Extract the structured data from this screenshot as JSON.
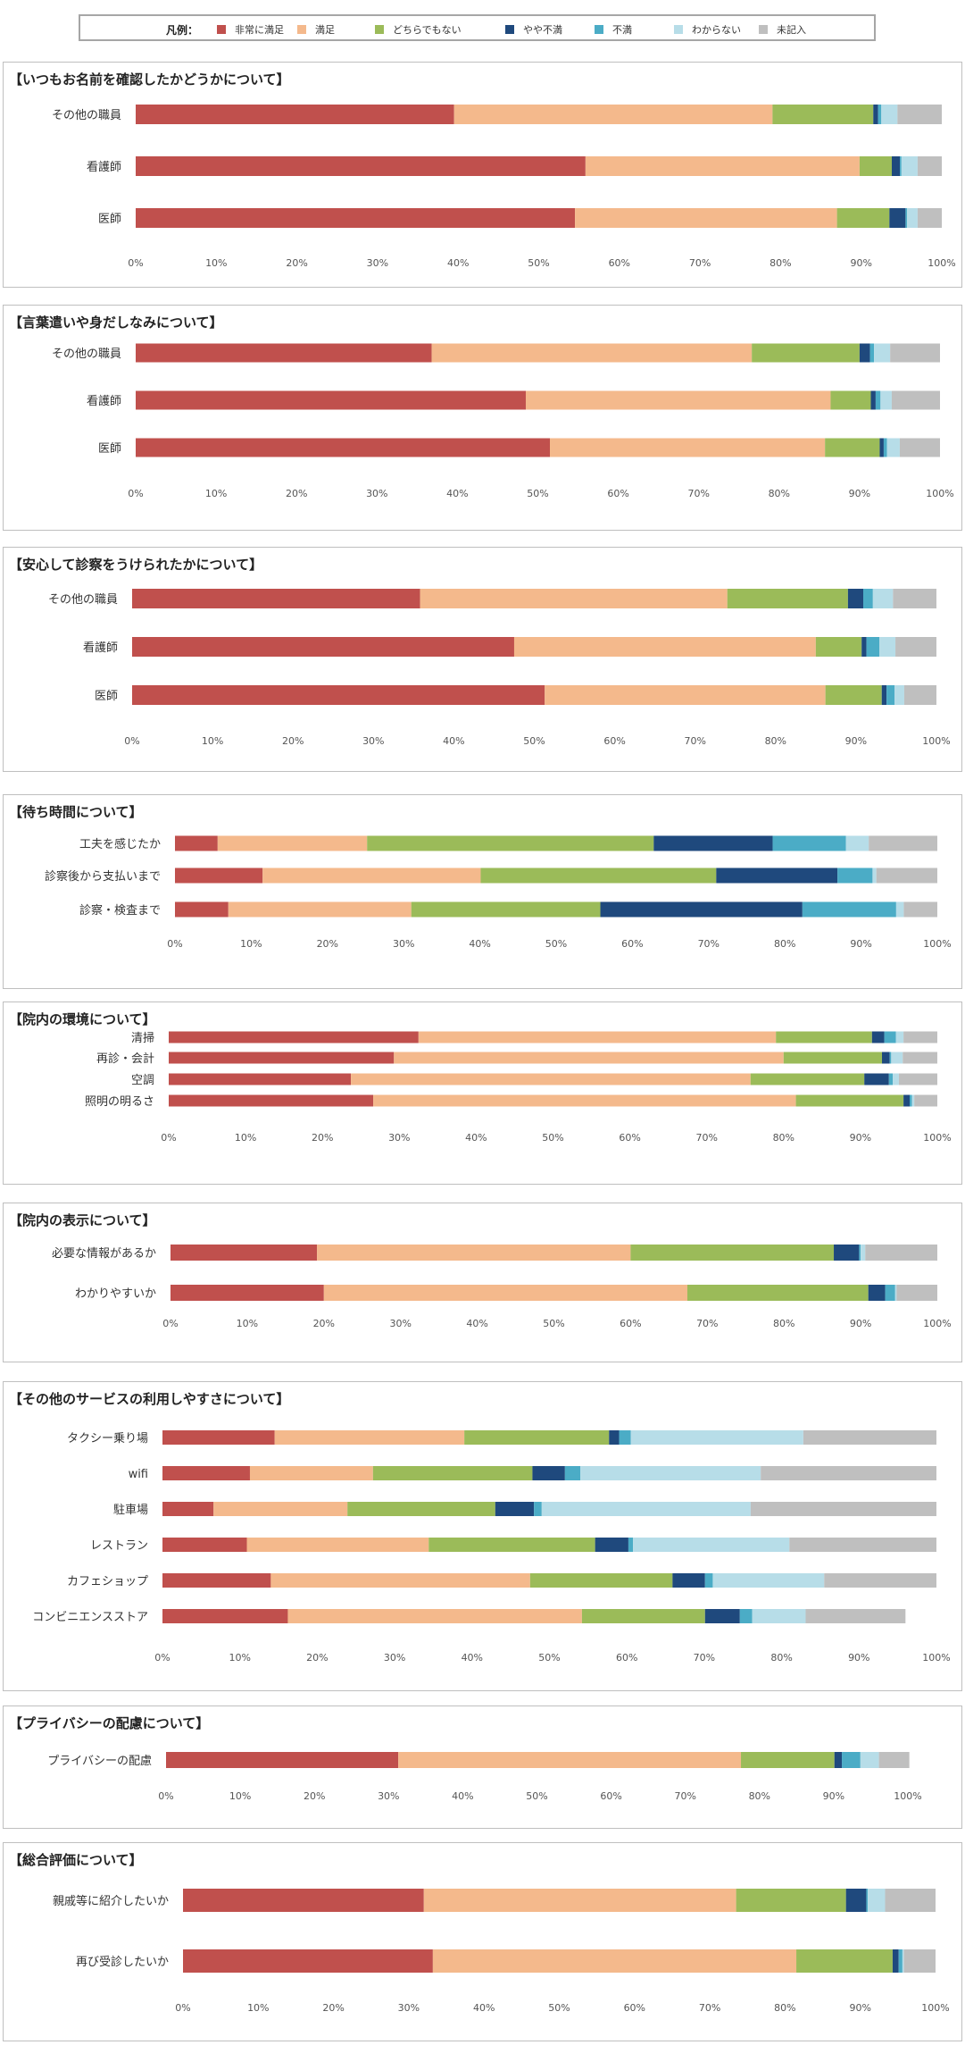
{
  "legend": {
    "title": "凡例：",
    "items": [
      {
        "label": "非常に満足",
        "color": "#c0504d"
      },
      {
        "label": "満足",
        "color": "#f4b98c"
      },
      {
        "label": "どちらでもない",
        "color": "#9bbb59"
      },
      {
        "label": "やや不満",
        "color": "#1f497d"
      },
      {
        "label": "不満",
        "color": "#4bacc6"
      },
      {
        "label": "わからない",
        "color": "#b7dde8"
      },
      {
        "label": "未記入",
        "color": "#bfbfbf"
      }
    ]
  },
  "chart_data": [
    {
      "type": "bar",
      "orientation": "horizontal",
      "stacked": true,
      "title": "【いつもお名前を確認したかどうかについて】",
      "xlim": [
        0,
        100
      ],
      "xticks": [
        "0%",
        "10%",
        "20%",
        "30%",
        "40%",
        "50%",
        "60%",
        "70%",
        "80%",
        "90%",
        "100%"
      ],
      "categories": [
        "その他の職員",
        "看護師",
        "医師"
      ],
      "series_values": [
        [
          39.5,
          39.5,
          12.5,
          0.6,
          0.4,
          2.0,
          5.5
        ],
        [
          55.8,
          34.0,
          4.0,
          1.0,
          0.2,
          2.0,
          3.0
        ],
        [
          54.5,
          32.5,
          6.5,
          2.0,
          0.2,
          1.3,
          3.0
        ]
      ]
    },
    {
      "type": "bar",
      "orientation": "horizontal",
      "stacked": true,
      "title": "【言葉遣いや身だしなみについて】",
      "xlim": [
        0,
        100
      ],
      "xticks": [
        "0%",
        "10%",
        "20%",
        "30%",
        "40%",
        "50%",
        "60%",
        "70%",
        "80%",
        "90%",
        "100%"
      ],
      "categories": [
        "その他の職員",
        "看護師",
        "医師"
      ],
      "series_values": [
        [
          36.8,
          39.8,
          13.4,
          1.3,
          0.5,
          2.0,
          6.2
        ],
        [
          48.5,
          37.9,
          5.0,
          0.6,
          0.6,
          1.4,
          6.0
        ],
        [
          51.5,
          34.2,
          6.8,
          0.5,
          0.4,
          1.6,
          5.0
        ]
      ]
    },
    {
      "type": "bar",
      "orientation": "horizontal",
      "stacked": true,
      "title": "【安心して診察をうけられたかについて】",
      "xlim": [
        0,
        100
      ],
      "xticks": [
        "0%",
        "10%",
        "20%",
        "30%",
        "40%",
        "50%",
        "60%",
        "70%",
        "80%",
        "90%",
        "100%"
      ],
      "categories": [
        "その他の職員",
        "看護師",
        "医師"
      ],
      "series_values": [
        [
          35.8,
          38.2,
          15.0,
          1.9,
          1.2,
          2.5,
          5.4
        ],
        [
          47.5,
          37.5,
          5.7,
          0.6,
          1.6,
          2.0,
          5.1
        ],
        [
          51.3,
          34.9,
          7.0,
          0.6,
          1.0,
          1.2,
          4.0
        ]
      ]
    },
    {
      "type": "bar",
      "orientation": "horizontal",
      "stacked": true,
      "title": "【待ち時間について】",
      "xlim": [
        0,
        100
      ],
      "xticks": [
        "0%",
        "10%",
        "20%",
        "30%",
        "40%",
        "50%",
        "60%",
        "70%",
        "80%",
        "90%",
        "100%"
      ],
      "categories": [
        "工夫を感じたか",
        "診察後から支払いまで",
        "診察・検査まで"
      ],
      "series_values": [
        [
          5.6,
          19.6,
          37.6,
          15.6,
          9.6,
          3.0,
          9.0
        ],
        [
          11.5,
          28.6,
          30.9,
          15.9,
          4.6,
          0.5,
          8.0
        ],
        [
          7.0,
          24.0,
          24.8,
          26.5,
          12.3,
          1.0,
          4.4
        ]
      ]
    },
    {
      "type": "bar",
      "orientation": "horizontal",
      "stacked": true,
      "title": "【院内の環境について】",
      "xlim": [
        0,
        100
      ],
      "xticks": [
        "0%",
        "10%",
        "20%",
        "30%",
        "40%",
        "50%",
        "60%",
        "70%",
        "80%",
        "90%",
        "100%"
      ],
      "categories": [
        "清掃",
        "再診・会計",
        "空調",
        "照明の明るさ"
      ],
      "series_values": [
        [
          32.5,
          46.5,
          12.5,
          1.6,
          1.5,
          1.0,
          4.4
        ],
        [
          29.3,
          50.7,
          12.8,
          1.0,
          0.2,
          1.5,
          4.5
        ],
        [
          23.7,
          52.0,
          14.8,
          3.2,
          0.5,
          0.8,
          5.0
        ],
        [
          26.6,
          55.0,
          14.0,
          0.8,
          0.3,
          0.3,
          3.0
        ]
      ]
    },
    {
      "type": "bar",
      "orientation": "horizontal",
      "stacked": true,
      "title": "【院内の表示について】",
      "xlim": [
        0,
        100
      ],
      "xticks": [
        "0%",
        "10%",
        "20%",
        "30%",
        "40%",
        "50%",
        "60%",
        "70%",
        "80%",
        "90%",
        "100%"
      ],
      "categories": [
        "必要な情報があるか",
        "わかりやすいか"
      ],
      "series_values": [
        [
          19.1,
          40.9,
          26.5,
          3.3,
          0.2,
          0.6,
          9.4
        ],
        [
          20.0,
          47.4,
          23.6,
          2.2,
          1.3,
          0.2,
          5.3
        ]
      ]
    },
    {
      "type": "bar",
      "orientation": "horizontal",
      "stacked": true,
      "title": "【その他のサービスの利用しやすさについて】",
      "xlim": [
        0,
        100
      ],
      "xticks": [
        "0%",
        "10%",
        "20%",
        "30%",
        "40%",
        "50%",
        "60%",
        "70%",
        "80%",
        "90%",
        "100%"
      ],
      "categories": [
        "タクシー乗り場",
        "wifi",
        "駐車場",
        "レストラン",
        "カフェショップ",
        "コンビニエンスストア"
      ],
      "series_values": [
        [
          14.5,
          24.5,
          18.7,
          1.3,
          1.5,
          22.3,
          17.2
        ],
        [
          11.3,
          15.9,
          20.6,
          4.2,
          2.0,
          23.3,
          22.7
        ],
        [
          6.6,
          17.3,
          19.1,
          5.0,
          1.0,
          27.0,
          24.0
        ],
        [
          10.9,
          23.5,
          21.5,
          4.3,
          0.6,
          20.2,
          19.0
        ],
        [
          14.0,
          33.5,
          18.4,
          4.2,
          1.0,
          14.4,
          14.5
        ],
        [
          16.2,
          38.0,
          15.9,
          4.5,
          1.6,
          6.9,
          12.9
        ]
      ]
    },
    {
      "type": "bar",
      "orientation": "horizontal",
      "stacked": true,
      "title": "【プライバシーの配慮について】",
      "xlim": [
        0,
        100
      ],
      "xticks": [
        "0%",
        "10%",
        "20%",
        "30%",
        "40%",
        "50%",
        "60%",
        "70%",
        "80%",
        "90%",
        "100%"
      ],
      "categories": [
        "プライバシーの配慮"
      ],
      "series_values": [
        [
          31.3,
          46.2,
          12.6,
          1.0,
          2.5,
          2.5,
          4.1
        ]
      ]
    },
    {
      "type": "bar",
      "orientation": "horizontal",
      "stacked": true,
      "title": "【総合評価について】",
      "xlim": [
        0,
        100
      ],
      "xticks": [
        "0%",
        "10%",
        "20%",
        "30%",
        "40%",
        "50%",
        "60%",
        "70%",
        "80%",
        "90%",
        "100%"
      ],
      "categories": [
        "親戚等に紹介したいか",
        "再び受診したいか"
      ],
      "series_values": [
        [
          32.0,
          41.5,
          14.6,
          2.7,
          0.2,
          2.3,
          6.7
        ],
        [
          33.2,
          48.3,
          12.8,
          0.8,
          0.5,
          0.2,
          4.2
        ]
      ]
    }
  ]
}
